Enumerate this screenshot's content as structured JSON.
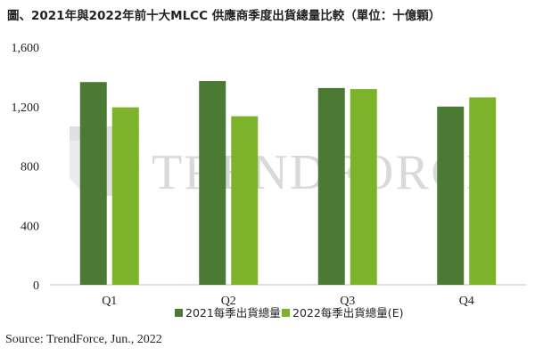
{
  "title": "圖、2021年與2022年前十大MLCC 供應商季度出貨總量比較（單位：十億顆）",
  "source": "Source: TrendForce, Jun., 2022",
  "watermark": {
    "text": "TRENDFORCE",
    "logo": "trendforce-logo"
  },
  "colors": {
    "series_2021": "#4b7a35",
    "series_2022": "#7cb32a",
    "axis": "#bfbfbf"
  },
  "chart_data": {
    "type": "bar",
    "categories": [
      "Q1",
      "Q2",
      "Q3",
      "Q4"
    ],
    "series": [
      {
        "name": "2021每季出貨總量",
        "values": [
          1365,
          1372,
          1325,
          1200
        ]
      },
      {
        "name": "2022每季出貨總量(E)",
        "values": [
          1195,
          1135,
          1318,
          1262
        ]
      }
    ],
    "ylim": [
      0,
      1600
    ],
    "yticks": [
      0,
      400,
      800,
      1200,
      1600
    ],
    "ytick_labels": [
      "0",
      "400",
      "800",
      "1,200",
      "1,600"
    ],
    "grid": false,
    "legend": "bottom"
  }
}
